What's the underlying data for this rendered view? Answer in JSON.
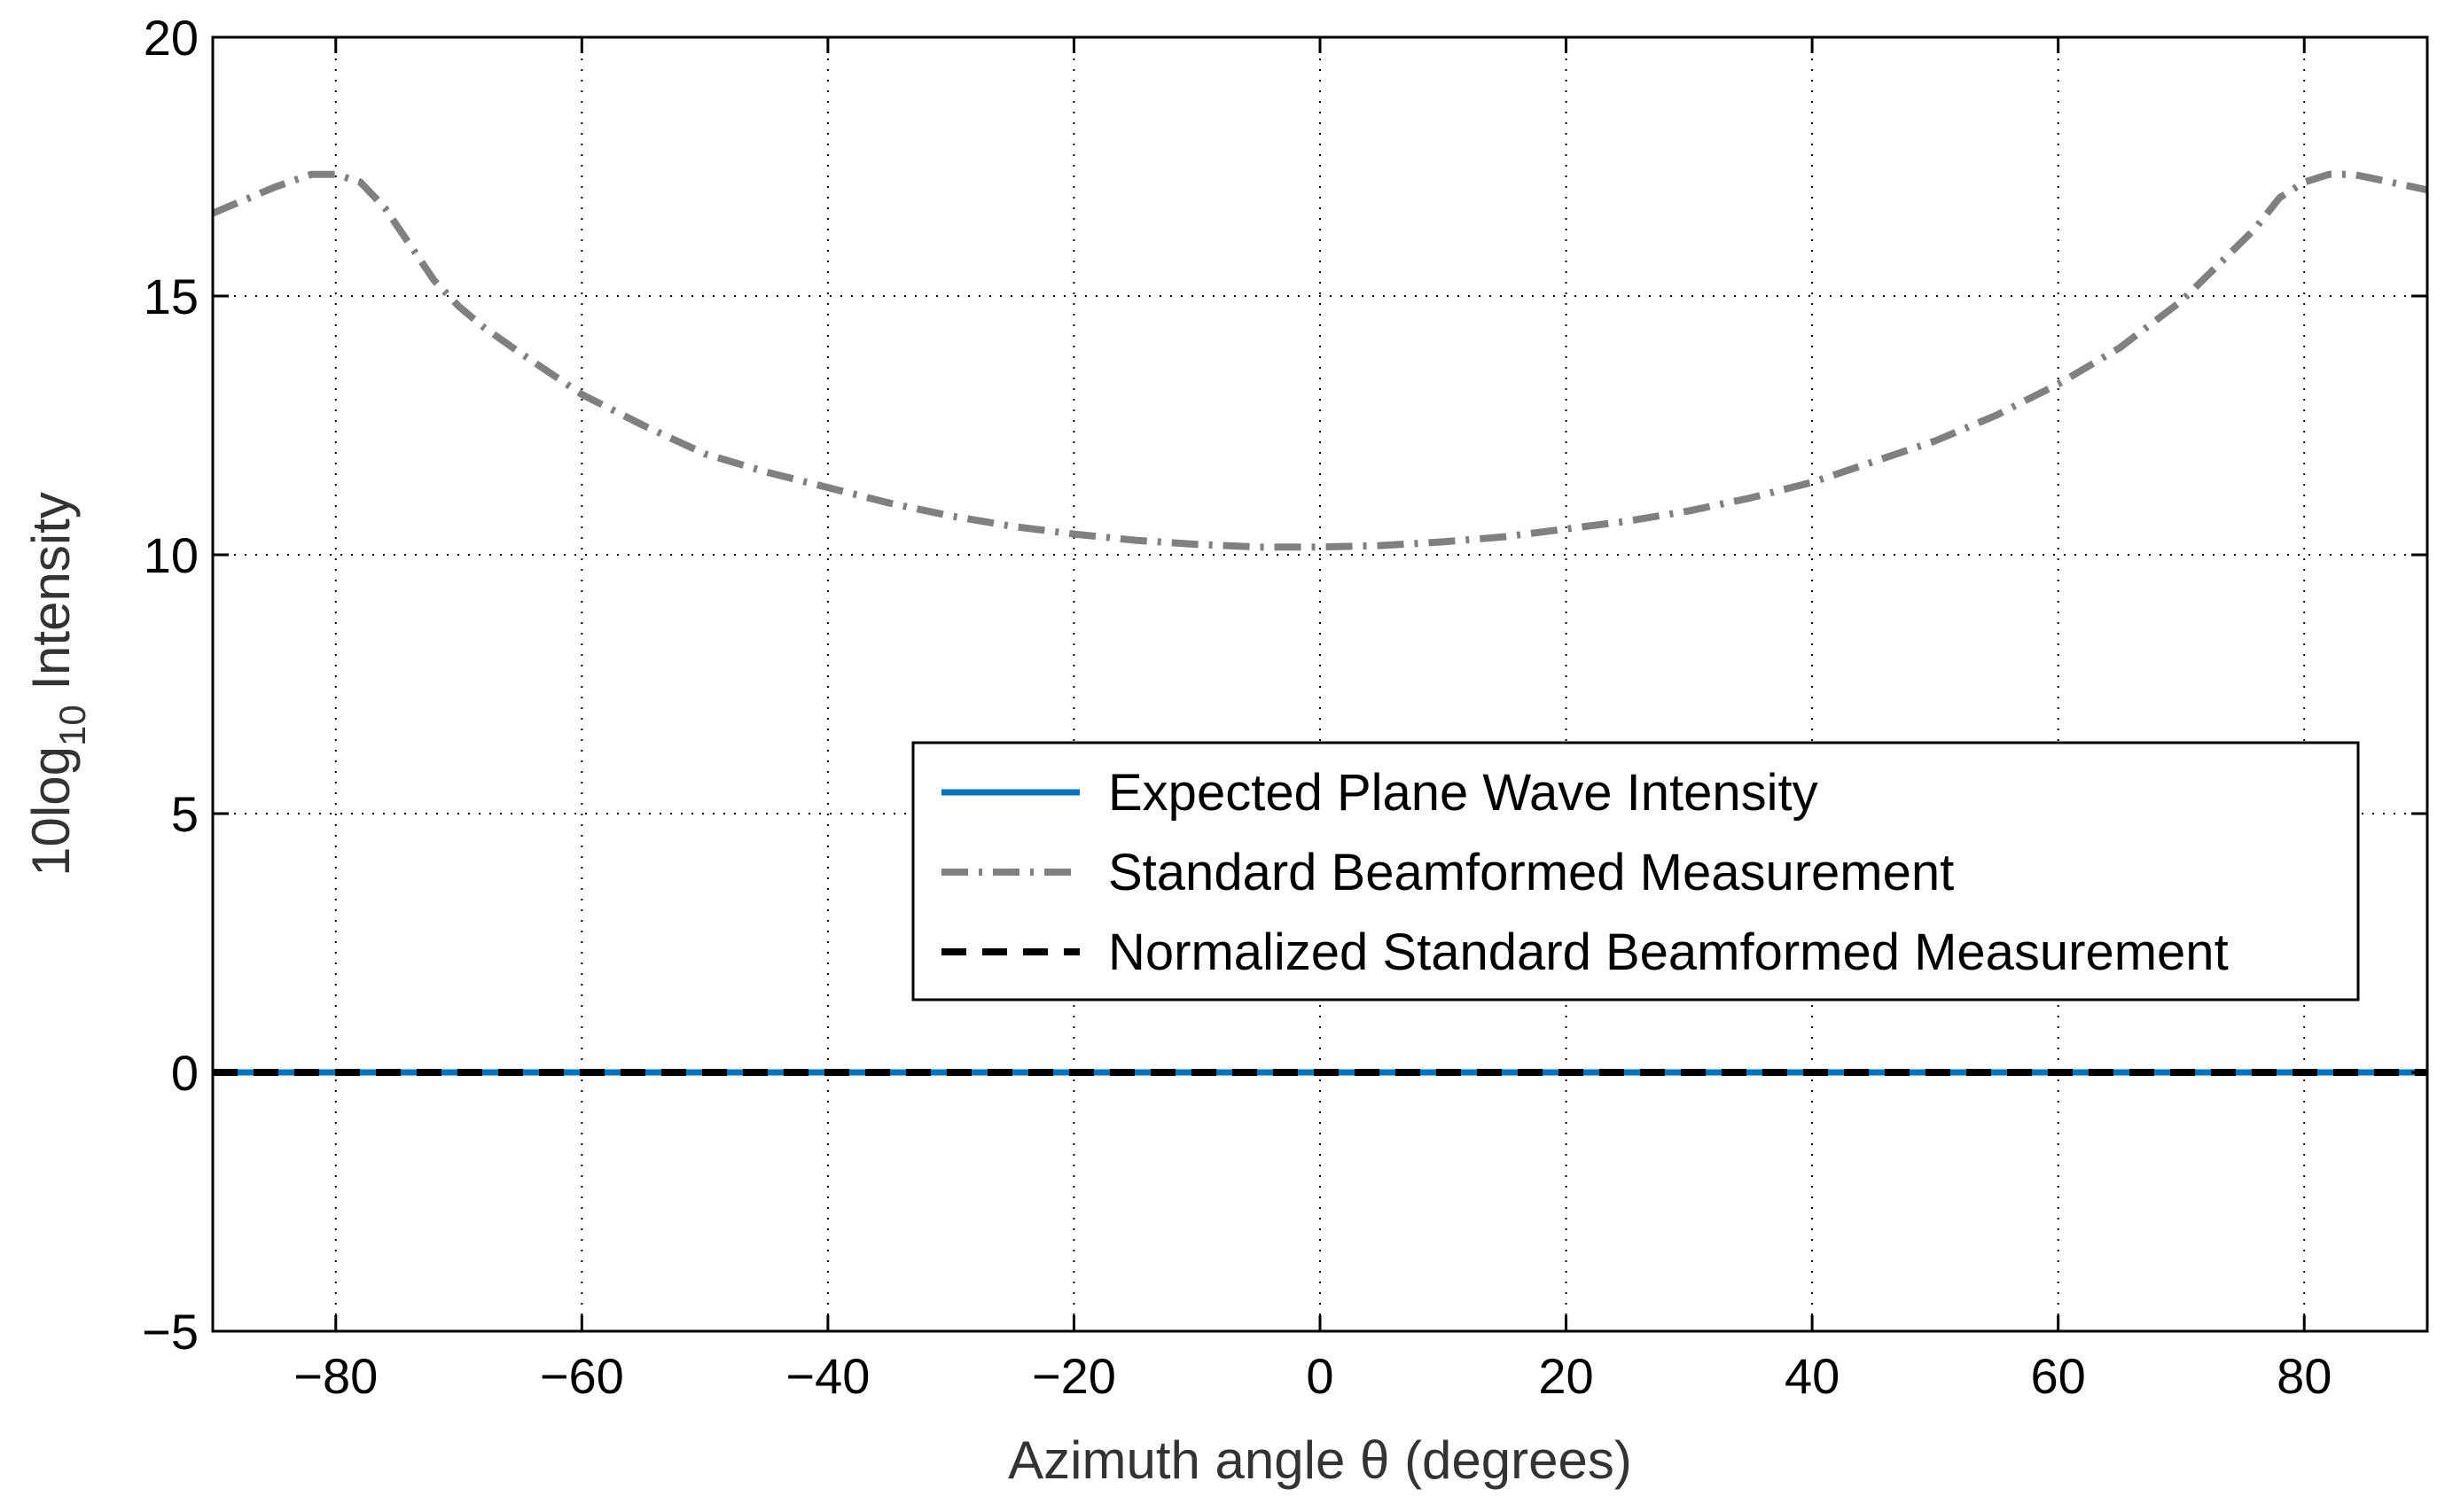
{
  "chart_data": {
    "type": "line",
    "title": "",
    "xlabel": "Azimuth angle θ (degrees)",
    "ylabel": {
      "prefix": "10log",
      "subscript": "10",
      "suffix": " Intensity"
    },
    "xlim": [
      -90,
      90
    ],
    "ylim": [
      -5,
      20
    ],
    "xticks": [
      -80,
      -60,
      -40,
      -20,
      0,
      20,
      40,
      60,
      80
    ],
    "yticks": [
      -5,
      0,
      5,
      10,
      15,
      20
    ],
    "xtick_labels": [
      "−80",
      "−60",
      "−40",
      "−20",
      "0",
      "20",
      "40",
      "60",
      "80"
    ],
    "ytick_labels": [
      "−5",
      "0",
      "5",
      "10",
      "15",
      "20"
    ],
    "grid": true,
    "legend_position": "center-right",
    "series": [
      {
        "name": "Expected Plane Wave Intensity",
        "style": "solid",
        "color": "#0072BD",
        "x": [
          -90,
          90
        ],
        "y": [
          0,
          0
        ]
      },
      {
        "name": "Standard Beamformed Measurement",
        "style": "dashdot",
        "color": "#808080",
        "x": [
          -90,
          -85,
          -82,
          -80,
          -78,
          -76,
          -74,
          -72,
          -70,
          -68,
          -65,
          -60,
          -55,
          -50,
          -45,
          -40,
          -35,
          -30,
          -25,
          -20,
          -15,
          -10,
          -5,
          0,
          5,
          10,
          15,
          20,
          25,
          30,
          35,
          40,
          45,
          50,
          55,
          60,
          65,
          70,
          73,
          76,
          78,
          80,
          82,
          84,
          86,
          88,
          90
        ],
        "y": [
          16.6,
          17.1,
          17.35,
          17.35,
          17.2,
          16.7,
          16.0,
          15.3,
          14.8,
          14.4,
          13.9,
          13.1,
          12.5,
          11.95,
          11.6,
          11.3,
          11.0,
          10.75,
          10.55,
          10.4,
          10.28,
          10.2,
          10.15,
          10.15,
          10.18,
          10.25,
          10.35,
          10.5,
          10.65,
          10.85,
          11.1,
          11.4,
          11.8,
          12.2,
          12.7,
          13.3,
          14.0,
          14.9,
          15.6,
          16.3,
          16.9,
          17.2,
          17.35,
          17.35,
          17.25,
          17.15,
          17.05
        ]
      },
      {
        "name": "Normalized Standard Beamformed Measurement",
        "style": "dashed",
        "color": "#000000",
        "x": [
          -90,
          90
        ],
        "y": [
          0,
          0
        ]
      }
    ]
  }
}
